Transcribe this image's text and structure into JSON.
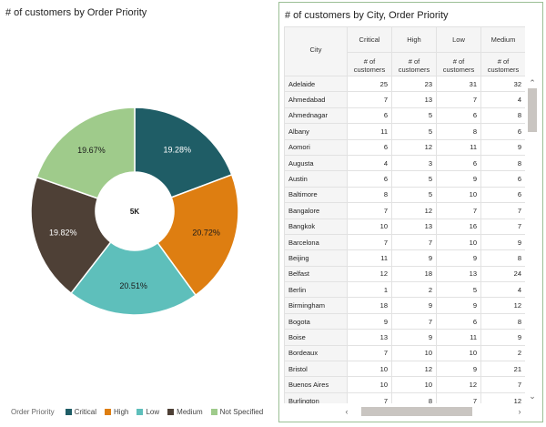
{
  "left": {
    "title": "# of customers by Order Priority"
  },
  "chart_data": {
    "type": "pie",
    "categories": [
      "Critical",
      "High",
      "Low",
      "Medium",
      "Not Specified"
    ],
    "values": [
      19.28,
      20.72,
      20.51,
      19.82,
      19.67
    ],
    "labels": [
      "19.28%",
      "20.72%",
      "20.51%",
      "19.82%",
      "19.67%"
    ],
    "colors": [
      "#1f5d66",
      "#de7e11",
      "#5ebfbb",
      "#4e4036",
      "#9fcb8b"
    ],
    "center_label": "5K",
    "legend_title": "Order Priority",
    "legend_position": "bottom-left"
  },
  "right": {
    "title": "# of customers by City, Order Priority",
    "row_header": "City",
    "columns": [
      "Critical",
      "High",
      "Low",
      "Medium"
    ],
    "measure": "# of customers",
    "rows": [
      {
        "city": "Adelaide",
        "vals": [
          "25",
          "23",
          "31",
          "32"
        ]
      },
      {
        "city": "Ahmedabad",
        "vals": [
          "7",
          "13",
          "7",
          "4"
        ]
      },
      {
        "city": "Ahmednagar",
        "vals": [
          "6",
          "5",
          "6",
          "8"
        ]
      },
      {
        "city": "Albany",
        "vals": [
          "11",
          "5",
          "8",
          "6"
        ]
      },
      {
        "city": "Aomori",
        "vals": [
          "6",
          "12",
          "11",
          "9"
        ]
      },
      {
        "city": "Augusta",
        "vals": [
          "4",
          "3",
          "6",
          "8"
        ]
      },
      {
        "city": "Austin",
        "vals": [
          "6",
          "5",
          "9",
          "6"
        ]
      },
      {
        "city": "Baltimore",
        "vals": [
          "8",
          "5",
          "10",
          "6"
        ]
      },
      {
        "city": "Bangalore",
        "vals": [
          "7",
          "12",
          "7",
          "7"
        ]
      },
      {
        "city": "Bangkok",
        "vals": [
          "10",
          "13",
          "16",
          "7"
        ]
      },
      {
        "city": "Barcelona",
        "vals": [
          "7",
          "7",
          "10",
          "9"
        ]
      },
      {
        "city": "Beijing",
        "vals": [
          "11",
          "9",
          "9",
          "8"
        ]
      },
      {
        "city": "Belfast",
        "vals": [
          "12",
          "18",
          "13",
          "24"
        ]
      },
      {
        "city": "Berlin",
        "vals": [
          "1",
          "2",
          "5",
          "4"
        ]
      },
      {
        "city": "Birmingham",
        "vals": [
          "18",
          "9",
          "9",
          "12"
        ]
      },
      {
        "city": "Bogota",
        "vals": [
          "9",
          "7",
          "6",
          "8"
        ]
      },
      {
        "city": "Boise",
        "vals": [
          "13",
          "9",
          "11",
          "9"
        ]
      },
      {
        "city": "Bordeaux",
        "vals": [
          "7",
          "10",
          "10",
          "2"
        ]
      },
      {
        "city": "Bristol",
        "vals": [
          "10",
          "12",
          "9",
          "21"
        ]
      },
      {
        "city": "Buenos Aires",
        "vals": [
          "10",
          "10",
          "12",
          "7"
        ]
      },
      {
        "city": "Burlington",
        "vals": [
          "7",
          "8",
          "7",
          "12"
        ]
      }
    ]
  }
}
